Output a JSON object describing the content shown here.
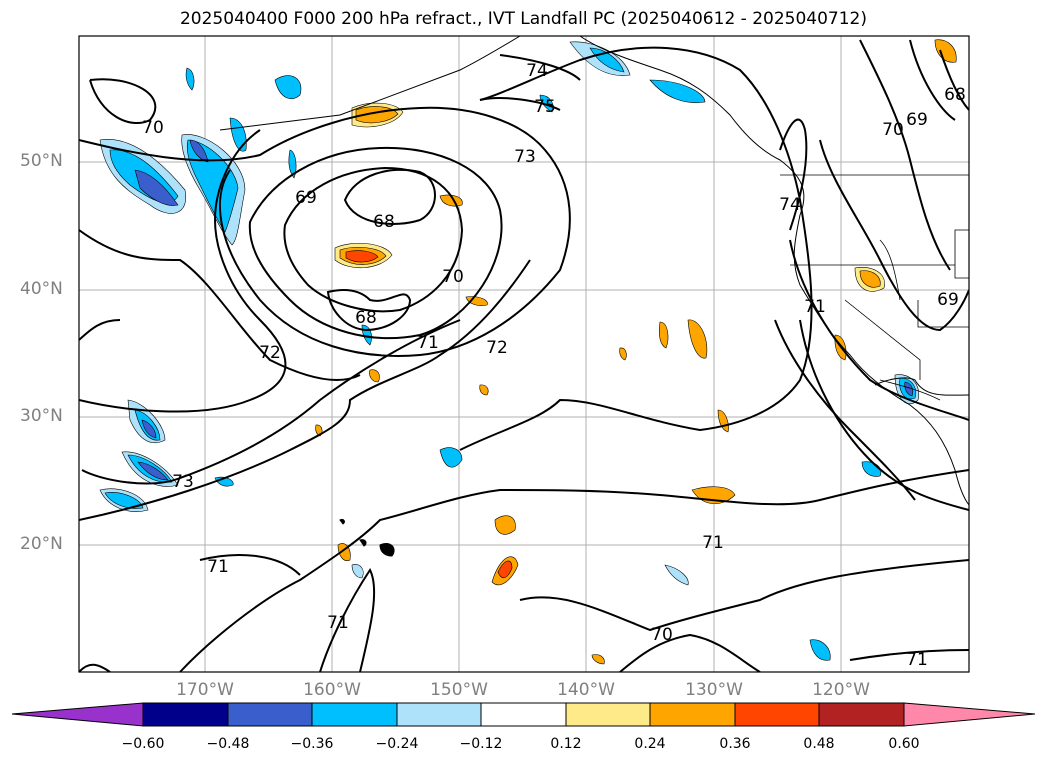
{
  "title": "2025040400 F000 200 hPa refract., IVT Landfall PC (2025040612 - 2025040712)",
  "map": {
    "lat_ticks": [
      "50°N",
      "40°N",
      "30°N",
      "20°N"
    ],
    "lon_ticks": [
      "170°W",
      "160°W",
      "150°W",
      "140°W",
      "130°W",
      "120°W"
    ],
    "contour_labels": [
      "70",
      "74",
      "75",
      "73",
      "69",
      "68",
      "70",
      "68",
      "71",
      "72",
      "70",
      "69",
      "68",
      "74",
      "71",
      "69",
      "72",
      "73",
      "71",
      "71",
      "71",
      "70",
      "71"
    ],
    "colors": {
      "positive": [
        "#ffea8a",
        "#ffa500",
        "#ff4500"
      ],
      "negative": [
        "#aee2fa",
        "#00bfff",
        "#3a5fcd"
      ]
    }
  },
  "colorbar": {
    "ticks": [
      "−0.60",
      "−0.48",
      "−0.36",
      "−0.24",
      "−0.12",
      "0.12",
      "0.24",
      "0.36",
      "0.48",
      "0.60"
    ],
    "colors": [
      "#9932cc",
      "#00008b",
      "#3a5fcd",
      "#00bfff",
      "#aee2fa",
      "#ffffff",
      "#ffea8a",
      "#ffa500",
      "#ff4500",
      "#b22222",
      "#ff88aa"
    ]
  }
}
